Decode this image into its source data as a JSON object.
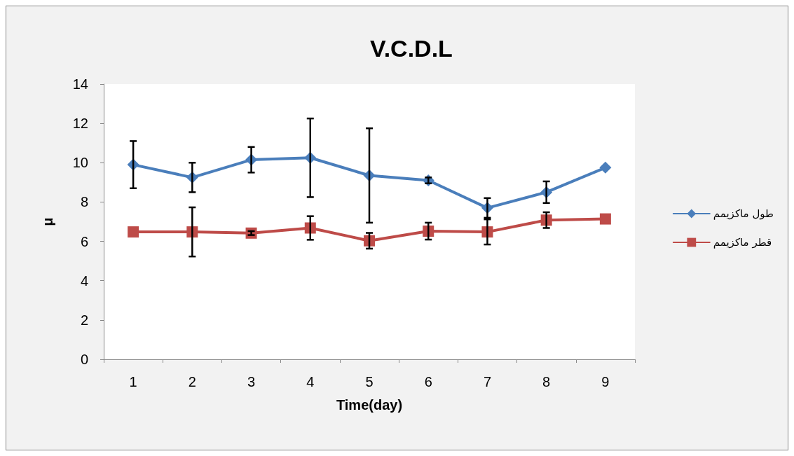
{
  "chart_data": {
    "type": "line",
    "title": "V.C.D.L",
    "xlabel": "Time(day)",
    "ylabel": "μ",
    "categories": [
      "1",
      "2",
      "3",
      "4",
      "5",
      "6",
      "7",
      "8",
      "9"
    ],
    "series": [
      {
        "name": "طول ماکزیمم",
        "color": "#4a7ebb",
        "marker": "diamond",
        "values": [
          9.9,
          9.25,
          10.15,
          10.25,
          9.35,
          9.1,
          7.7,
          8.5,
          9.75
        ],
        "errors": [
          1.2,
          0.75,
          0.65,
          2.0,
          2.4,
          0.15,
          0.5,
          0.55,
          null
        ]
      },
      {
        "name": "قطر ماکزیمم",
        "color": "#be4b48",
        "marker": "square",
        "values": [
          6.48,
          6.48,
          6.42,
          6.68,
          6.03,
          6.52,
          6.48,
          7.08,
          7.14
        ],
        "errors": [
          null,
          1.25,
          0.1,
          0.6,
          0.4,
          0.43,
          0.64,
          0.4,
          null
        ]
      }
    ],
    "ylim": [
      0,
      14
    ],
    "yticks": [
      0,
      2,
      4,
      6,
      8,
      10,
      12,
      14
    ],
    "grid": false,
    "legend": "right",
    "line_style": "solid"
  }
}
